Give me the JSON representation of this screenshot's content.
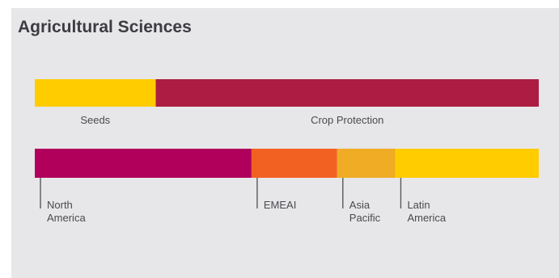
{
  "title": "Agricultural Sciences",
  "chart_data": [
    {
      "type": "bar",
      "orientation": "horizontal-stacked",
      "categories": [
        "Seeds",
        "Crop Protection"
      ],
      "values": [
        24,
        76
      ],
      "colors": [
        "#ffcc00",
        "#ad1c42"
      ],
      "unit": "percent"
    },
    {
      "type": "bar",
      "orientation": "horizontal-stacked",
      "categories": [
        "North America",
        "EMEAI",
        "Asia Pacific",
        "Latin America"
      ],
      "labels": [
        [
          "North",
          "America"
        ],
        [
          "EMEAI"
        ],
        [
          "Asia",
          "Pacific"
        ],
        [
          "Latin",
          "America"
        ]
      ],
      "values": [
        43,
        17,
        11.5,
        28.5
      ],
      "colors": [
        "#b0005b",
        "#f36122",
        "#efac24",
        "#ffcc00"
      ],
      "unit": "percent"
    }
  ]
}
